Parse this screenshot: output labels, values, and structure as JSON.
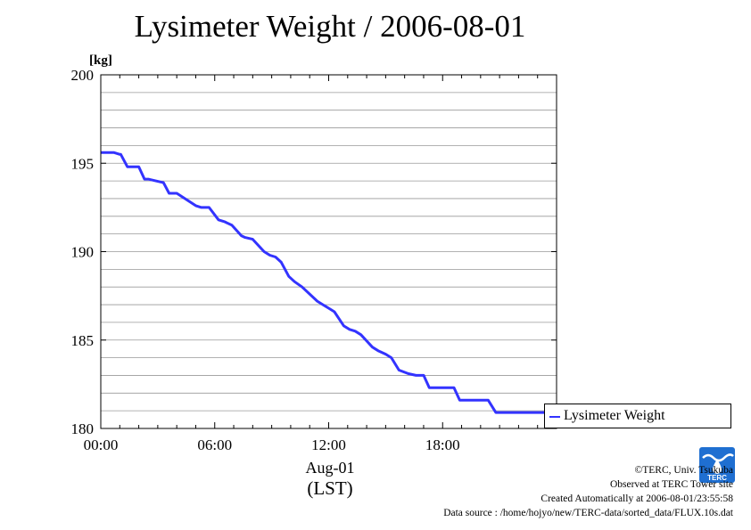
{
  "title": "Lysimeter Weight / 2006-08-01",
  "legend": {
    "label": "Lysimeter Weight"
  },
  "credits": {
    "copyright": "©TERC, Univ. Tsukuba",
    "observed": "Observed at TERC Tower site",
    "created": "Created Automatically at 2006-08-01/23:55:58",
    "source": "Data source : /home/hojyo/new/TERC-data/sorted_data/FLUX.10s.dat"
  },
  "logo": {
    "text": "TERC",
    "icon": "terc-logo-icon"
  },
  "colors": {
    "series": "#3333ff",
    "grid": "#999999",
    "axis": "#000000"
  },
  "chart_data": {
    "type": "line",
    "title": "Lysimeter Weight / 2006-08-01",
    "yunit": "[kg]",
    "xlabel_date": "Aug-01",
    "xlabel_tz": "(LST)",
    "ylim": [
      180,
      200
    ],
    "xlim": [
      0,
      24
    ],
    "x_unit": "hour of day",
    "yticks": [
      180,
      185,
      190,
      195,
      200
    ],
    "xticks": [
      {
        "value": 0,
        "label": "00:00"
      },
      {
        "value": 6,
        "label": "06:00"
      },
      {
        "value": 12,
        "label": "12:00"
      },
      {
        "value": 18,
        "label": "18:00"
      }
    ],
    "grid": true,
    "legend_position": "right",
    "series": [
      {
        "name": "Lysimeter Weight",
        "x": [
          0.0,
          0.7,
          1.0,
          1.05,
          1.4,
          2.0,
          2.3,
          2.5,
          3.3,
          3.6,
          4.0,
          5.0,
          5.3,
          5.7,
          6.2,
          6.5,
          6.9,
          7.4,
          7.6,
          8.0,
          8.6,
          8.9,
          9.2,
          9.5,
          9.9,
          10.2,
          10.6,
          11.4,
          11.7,
          12.0,
          12.3,
          12.8,
          13.1,
          13.4,
          13.7,
          14.3,
          14.6,
          15.0,
          15.3,
          15.7,
          16.2,
          16.6,
          17.0,
          17.3,
          17.8,
          18.0,
          18.3,
          18.6,
          18.9,
          19.2,
          20.0,
          20.4,
          20.8,
          21.6,
          22.0,
          22.4,
          23.0,
          23.9
        ],
        "y": [
          195.6,
          195.6,
          195.5,
          195.5,
          194.8,
          194.8,
          194.1,
          194.1,
          193.9,
          193.3,
          193.3,
          192.6,
          192.5,
          192.5,
          191.8,
          191.7,
          191.5,
          190.9,
          190.8,
          190.7,
          190.0,
          189.8,
          189.7,
          189.4,
          188.6,
          188.3,
          188.0,
          187.2,
          187.0,
          186.8,
          186.6,
          185.8,
          185.6,
          185.5,
          185.3,
          184.6,
          184.4,
          184.2,
          184.0,
          183.3,
          183.1,
          183.0,
          183.0,
          182.3,
          182.3,
          182.3,
          182.3,
          182.3,
          181.6,
          181.6,
          181.6,
          181.6,
          180.9,
          180.9,
          180.9,
          180.9,
          180.9,
          180.9
        ]
      }
    ]
  }
}
